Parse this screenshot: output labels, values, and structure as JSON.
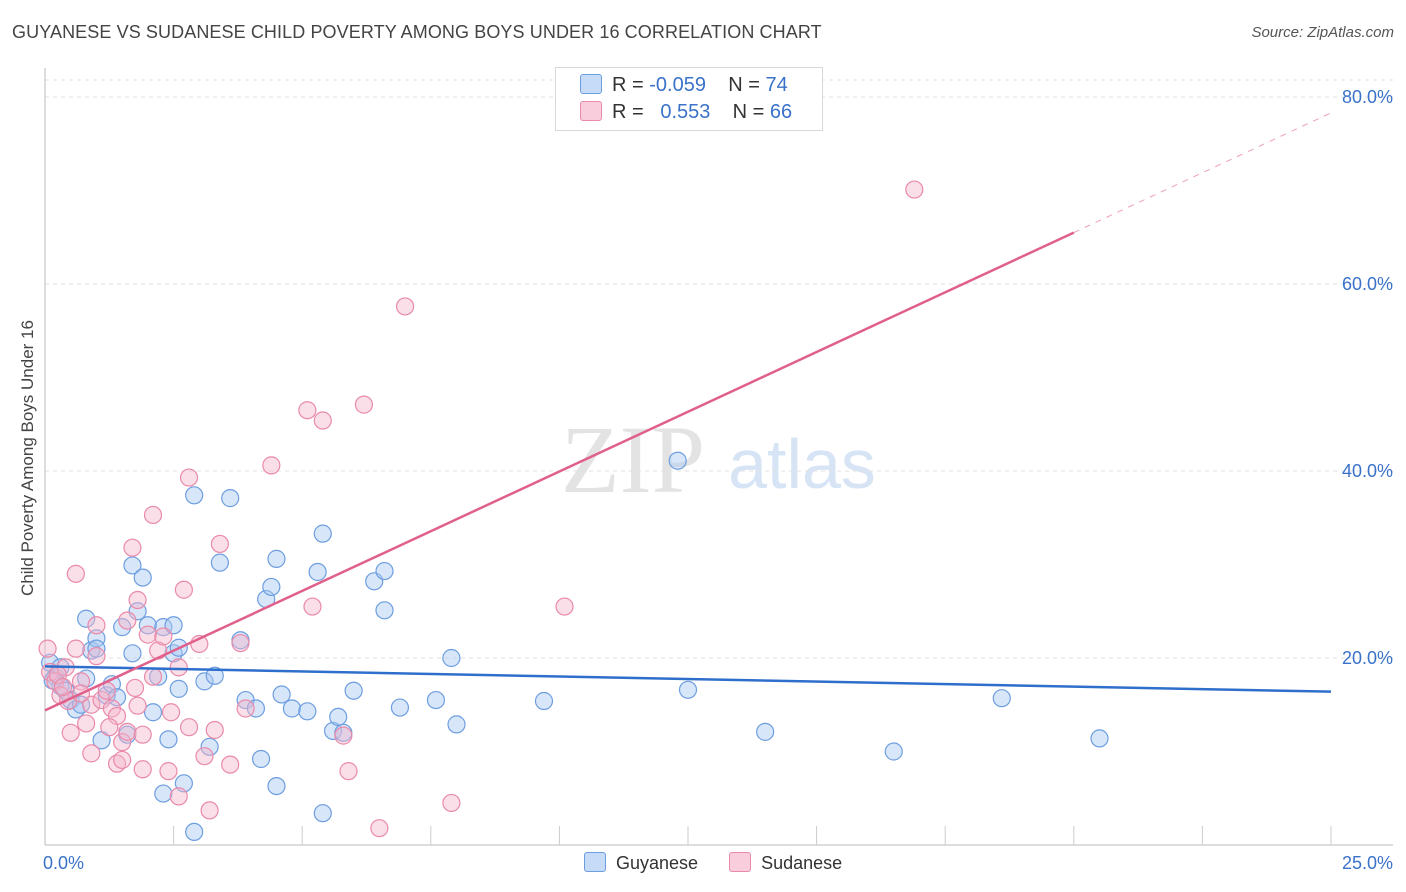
{
  "header": {
    "title": "GUYANESE VS SUDANESE CHILD POVERTY AMONG BOYS UNDER 16 CORRELATION CHART",
    "source": "Source: ZipAtlas.com"
  },
  "watermark": {
    "zip": "ZIP",
    "atlas": "atlas"
  },
  "legend_top": {
    "rows": [
      {
        "r_label": "R =",
        "r_value": "-0.059",
        "n_label": "N =",
        "n_value": "74"
      },
      {
        "r_label": "R =",
        "r_value": "0.553",
        "n_label": "N =",
        "n_value": "66"
      }
    ]
  },
  "legend_bottom": {
    "items": [
      "Guyanese",
      "Sudanese"
    ]
  },
  "colors": {
    "guyanese_fill": "#a9c8f2",
    "guyanese_stroke": "#6d9ee0",
    "guyanese_line": "#2f6fcc",
    "sudanese_fill": "#f5b6cb",
    "sudanese_stroke": "#ea8aaa",
    "sudanese_line": "#e0608b",
    "tick_label": "#3a72c9",
    "grid": "#e2e2e2"
  },
  "chart_data": {
    "type": "scatter",
    "title": "GUYANESE VS SUDANESE CHILD POVERTY AMONG BOYS UNDER 16 CORRELATION CHART",
    "xlabel": "",
    "ylabel": "Child Poverty Among Boys Under 16",
    "xlim": [
      0,
      25
    ],
    "ylim": [
      0,
      80
    ],
    "x_tick_labels": [
      "0.0%",
      "25.0%"
    ],
    "y_tick_labels": [
      "20.0%",
      "40.0%",
      "60.0%",
      "80.0%"
    ],
    "y_ticks": [
      20,
      40,
      60,
      80
    ],
    "grid": true,
    "legend_position": "bottom",
    "series": [
      {
        "name": "Guyanese",
        "r": -0.059,
        "n": 74,
        "trend": {
          "x": [
            0,
            25
          ],
          "y": [
            19.1,
            16.4
          ],
          "dashed_extension": false
        },
        "points": [
          [
            0.1,
            19.5
          ],
          [
            0.2,
            18.0
          ],
          [
            0.3,
            17.0
          ],
          [
            0.3,
            19.0
          ],
          [
            0.4,
            16.5
          ],
          [
            0.5,
            15.5
          ],
          [
            0.6,
            14.5
          ],
          [
            0.7,
            15.0
          ],
          [
            0.8,
            17.8
          ],
          [
            0.8,
            24.2
          ],
          [
            0.9,
            20.8
          ],
          [
            1.0,
            22.1
          ],
          [
            1.0,
            21.0
          ],
          [
            1.1,
            11.2
          ],
          [
            1.2,
            16.0
          ],
          [
            1.3,
            17.2
          ],
          [
            1.4,
            15.8
          ],
          [
            1.5,
            23.3
          ],
          [
            1.6,
            11.8
          ],
          [
            1.7,
            20.5
          ],
          [
            1.7,
            29.9
          ],
          [
            1.8,
            25.0
          ],
          [
            1.9,
            28.6
          ],
          [
            2.0,
            23.5
          ],
          [
            2.1,
            14.2
          ],
          [
            2.2,
            18.0
          ],
          [
            2.3,
            23.3
          ],
          [
            2.3,
            5.5
          ],
          [
            2.4,
            11.3
          ],
          [
            2.5,
            20.5
          ],
          [
            2.5,
            23.5
          ],
          [
            2.6,
            16.7
          ],
          [
            2.6,
            21.1
          ],
          [
            2.7,
            6.6
          ],
          [
            2.9,
            37.4
          ],
          [
            2.9,
            1.4
          ],
          [
            3.1,
            17.5
          ],
          [
            3.2,
            10.5
          ],
          [
            3.3,
            18.1
          ],
          [
            3.4,
            30.2
          ],
          [
            3.6,
            37.1
          ],
          [
            3.8,
            21.9
          ],
          [
            3.9,
            15.5
          ],
          [
            4.1,
            14.6
          ],
          [
            4.2,
            9.2
          ],
          [
            4.3,
            26.3
          ],
          [
            4.4,
            27.6
          ],
          [
            4.5,
            30.6
          ],
          [
            4.5,
            6.3
          ],
          [
            4.6,
            16.1
          ],
          [
            4.8,
            14.6
          ],
          [
            5.1,
            14.3
          ],
          [
            5.3,
            29.2
          ],
          [
            5.4,
            33.3
          ],
          [
            5.4,
            3.4
          ],
          [
            5.6,
            12.2
          ],
          [
            5.7,
            13.7
          ],
          [
            5.8,
            12.0
          ],
          [
            6.0,
            16.5
          ],
          [
            6.4,
            28.2
          ],
          [
            6.6,
            29.3
          ],
          [
            6.6,
            25.1
          ],
          [
            6.9,
            14.7
          ],
          [
            7.6,
            15.5
          ],
          [
            7.9,
            20.0
          ],
          [
            8.0,
            12.9
          ],
          [
            9.7,
            15.4
          ],
          [
            12.3,
            41.1
          ],
          [
            12.5,
            16.6
          ],
          [
            14.0,
            12.1
          ],
          [
            16.5,
            10.0
          ],
          [
            18.6,
            15.7
          ],
          [
            20.5,
            11.4
          ],
          [
            0.15,
            17.6
          ]
        ]
      },
      {
        "name": "Sudanese",
        "r": 0.553,
        "n": 66,
        "trend": {
          "x": [
            0,
            20
          ],
          "y": [
            14.4,
            65.5
          ],
          "dashed_extension": true,
          "dashed_to": {
            "x": 25,
            "y": 78.3
          }
        },
        "points": [
          [
            0.05,
            21.0
          ],
          [
            0.1,
            18.5
          ],
          [
            0.2,
            17.5
          ],
          [
            0.3,
            16.0
          ],
          [
            0.4,
            19.0
          ],
          [
            0.5,
            12.0
          ],
          [
            0.6,
            29.0
          ],
          [
            0.6,
            21.0
          ],
          [
            0.7,
            17.5
          ],
          [
            0.8,
            13.0
          ],
          [
            0.9,
            9.8
          ],
          [
            0.9,
            15.0
          ],
          [
            1.0,
            23.5
          ],
          [
            1.0,
            20.2
          ],
          [
            1.1,
            15.5
          ],
          [
            1.2,
            16.5
          ],
          [
            1.3,
            14.6
          ],
          [
            1.4,
            8.7
          ],
          [
            1.4,
            13.8
          ],
          [
            1.5,
            11.0
          ],
          [
            1.5,
            9.1
          ],
          [
            1.6,
            12.1
          ],
          [
            1.6,
            24.0
          ],
          [
            1.7,
            31.8
          ],
          [
            1.8,
            14.9
          ],
          [
            1.8,
            26.2
          ],
          [
            1.9,
            11.8
          ],
          [
            1.9,
            8.1
          ],
          [
            2.0,
            22.5
          ],
          [
            2.1,
            35.3
          ],
          [
            2.1,
            18.0
          ],
          [
            2.2,
            20.8
          ],
          [
            2.3,
            22.3
          ],
          [
            2.4,
            7.9
          ],
          [
            2.6,
            19.0
          ],
          [
            2.6,
            5.2
          ],
          [
            2.7,
            27.3
          ],
          [
            2.8,
            39.3
          ],
          [
            2.8,
            12.6
          ],
          [
            3.0,
            21.5
          ],
          [
            3.1,
            9.5
          ],
          [
            3.2,
            3.7
          ],
          [
            3.3,
            12.3
          ],
          [
            3.4,
            32.2
          ],
          [
            3.6,
            8.6
          ],
          [
            3.8,
            21.6
          ],
          [
            3.9,
            14.6
          ],
          [
            4.4,
            40.6
          ],
          [
            5.1,
            46.5
          ],
          [
            5.2,
            25.5
          ],
          [
            5.4,
            45.4
          ],
          [
            5.8,
            11.7
          ],
          [
            5.9,
            7.9
          ],
          [
            6.2,
            47.1
          ],
          [
            6.5,
            1.8
          ],
          [
            7.0,
            57.6
          ],
          [
            7.9,
            4.5
          ],
          [
            10.1,
            25.5
          ],
          [
            16.9,
            70.1
          ],
          [
            0.25,
            18.2
          ],
          [
            0.45,
            15.4
          ],
          [
            0.7,
            16.2
          ],
          [
            1.25,
            12.6
          ],
          [
            1.75,
            16.8
          ],
          [
            2.45,
            14.2
          ],
          [
            0.35,
            16.9
          ]
        ]
      }
    ]
  }
}
